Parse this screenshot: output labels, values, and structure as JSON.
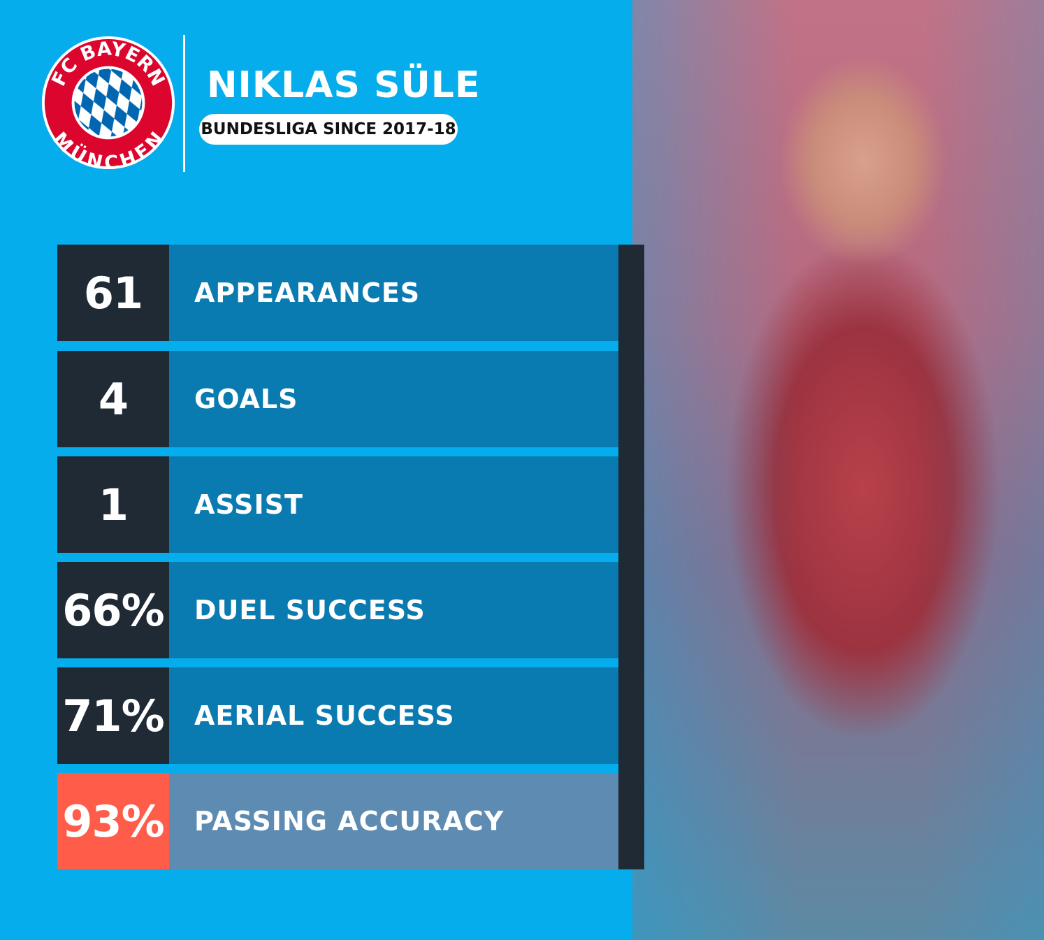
{
  "colors": {
    "background": "#06adec",
    "dark": "#1f2a35",
    "row": "#0a7bb0",
    "highlight_number": "#ff5c4a",
    "highlight_row": "#5d8bb1",
    "logo_red": "#dc052d",
    "logo_blue": "#0066b2"
  },
  "logo": {
    "top_text": "FC BAYERN",
    "bottom_text": "MÜNCHEN"
  },
  "player": {
    "name": "NIKLAS SÜLE",
    "subtitle": "BUNDESLIGA SINCE 2017-18"
  },
  "stats": [
    {
      "value": "61",
      "label": "APPEARANCES"
    },
    {
      "value": "4",
      "label": "GOALS"
    },
    {
      "value": "1",
      "label": "ASSIST"
    },
    {
      "value": "66%",
      "label": "DUEL SUCCESS"
    },
    {
      "value": "71%",
      "label": "AERIAL SUCCESS"
    },
    {
      "value": "93%",
      "label": "PASSING ACCURACY",
      "highlight": true
    }
  ]
}
